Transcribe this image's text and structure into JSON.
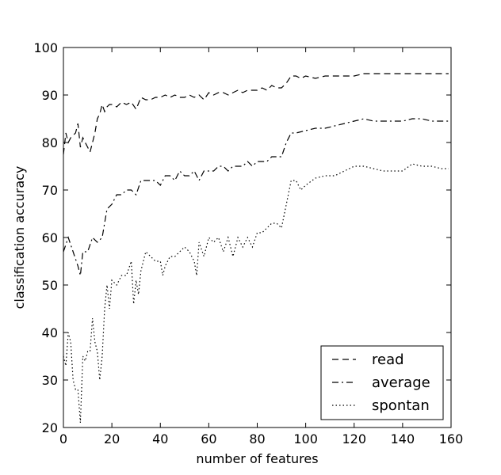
{
  "chart_data": {
    "type": "line",
    "title": "",
    "xlabel": "number of features",
    "ylabel": "classification accuracy",
    "xlim": [
      0,
      160
    ],
    "ylim": [
      20,
      100
    ],
    "xticks": [
      0,
      20,
      40,
      60,
      80,
      100,
      120,
      140,
      160
    ],
    "yticks": [
      20,
      30,
      40,
      50,
      60,
      70,
      80,
      90,
      100
    ],
    "grid": false,
    "legend_position": "bottom-right",
    "series": [
      {
        "name": "read",
        "style": "dashed",
        "color": "#000000",
        "x": [
          0,
          1,
          2,
          3,
          4,
          5,
          6,
          7,
          8,
          9,
          10,
          11,
          12,
          13,
          14,
          15,
          16,
          17,
          18,
          19,
          20,
          22,
          24,
          26,
          28,
          30,
          32,
          34,
          36,
          38,
          40,
          42,
          44,
          46,
          48,
          50,
          52,
          54,
          56,
          58,
          60,
          62,
          64,
          66,
          68,
          70,
          72,
          74,
          76,
          78,
          80,
          82,
          84,
          86,
          88,
          90,
          92,
          94,
          96,
          98,
          100,
          104,
          108,
          112,
          116,
          120,
          124,
          128,
          132,
          136,
          140,
          144,
          148,
          152,
          156,
          159
        ],
        "y": [
          77.5,
          82,
          80,
          81,
          81.5,
          82,
          84,
          79,
          81,
          80,
          79,
          78,
          80,
          82,
          85,
          86,
          88,
          86.5,
          87.5,
          88,
          88,
          87.5,
          88.5,
          88,
          88.5,
          87,
          89.5,
          89,
          89,
          89.5,
          89.5,
          90,
          89.5,
          90,
          89.5,
          89.5,
          90,
          89.5,
          90,
          89,
          90.5,
          90,
          90.5,
          90.5,
          90,
          90.5,
          91,
          90.5,
          91,
          91,
          91,
          91.5,
          91,
          92,
          91.5,
          91.5,
          92.5,
          94,
          94,
          93.5,
          94,
          93.5,
          94,
          94,
          94,
          94,
          94.5,
          94.5,
          94.5,
          94.5,
          94.5,
          94.5,
          94.5,
          94.5,
          94.5,
          94.5
        ]
      },
      {
        "name": "average",
        "style": "dashdot",
        "color": "#000000",
        "x": [
          0,
          2,
          4,
          6,
          7,
          8,
          10,
          12,
          14,
          16,
          18,
          20,
          22,
          24,
          26,
          28,
          30,
          32,
          34,
          36,
          38,
          40,
          42,
          44,
          46,
          48,
          50,
          52,
          54,
          56,
          58,
          60,
          62,
          64,
          66,
          68,
          70,
          72,
          74,
          76,
          78,
          80,
          82,
          84,
          86,
          88,
          90,
          92,
          94,
          96,
          100,
          104,
          108,
          112,
          116,
          120,
          124,
          128,
          132,
          136,
          140,
          144,
          148,
          152,
          156,
          159
        ],
        "y": [
          57,
          60,
          57,
          54,
          52,
          57,
          57,
          60,
          59,
          60,
          66,
          67,
          69,
          69,
          70,
          70,
          69,
          72,
          72,
          72,
          72,
          71,
          73,
          73,
          72,
          74,
          73,
          73,
          74,
          72,
          74,
          74,
          74,
          75,
          75,
          74,
          75,
          75,
          75,
          76,
          75,
          76,
          76,
          76,
          77,
          77,
          77,
          80,
          82,
          82,
          82.5,
          83,
          83,
          83.5,
          84,
          84.5,
          85,
          84.5,
          84.5,
          84.5,
          84.5,
          85,
          85,
          84.5,
          84.5,
          84.5
        ]
      },
      {
        "name": "spontan",
        "style": "dotted",
        "color": "#000000",
        "x": [
          0,
          1,
          2,
          3,
          4,
          5,
          6,
          7,
          8,
          9,
          10,
          11,
          12,
          13,
          14,
          15,
          16,
          17,
          18,
          19,
          20,
          22,
          24,
          26,
          28,
          29,
          30,
          31,
          32,
          34,
          36,
          38,
          40,
          41,
          42,
          44,
          46,
          48,
          50,
          52,
          54,
          55,
          56,
          58,
          60,
          62,
          64,
          66,
          68,
          70,
          72,
          74,
          76,
          78,
          80,
          82,
          84,
          86,
          88,
          90,
          92,
          94,
          96,
          98,
          100,
          104,
          108,
          112,
          116,
          120,
          124,
          128,
          132,
          136,
          140,
          144,
          148,
          152,
          156,
          159
        ],
        "y": [
          35,
          33,
          40,
          38,
          30,
          28,
          28,
          21,
          35,
          34,
          36,
          36,
          43,
          38,
          36,
          30,
          35,
          45,
          50,
          45,
          51,
          50,
          52,
          52,
          55,
          46,
          51,
          48,
          53,
          57,
          56,
          55,
          55,
          52,
          54,
          56,
          56,
          57,
          58,
          57,
          55,
          52,
          59,
          56,
          60,
          59,
          60,
          57,
          60,
          56,
          60,
          58,
          60,
          58,
          61,
          61,
          62,
          63,
          63,
          62,
          67,
          72,
          72,
          70,
          71,
          72.5,
          73,
          73,
          74,
          75,
          75,
          74.5,
          74,
          74,
          74,
          75.5,
          75,
          75,
          74.5,
          74.5
        ]
      }
    ]
  }
}
